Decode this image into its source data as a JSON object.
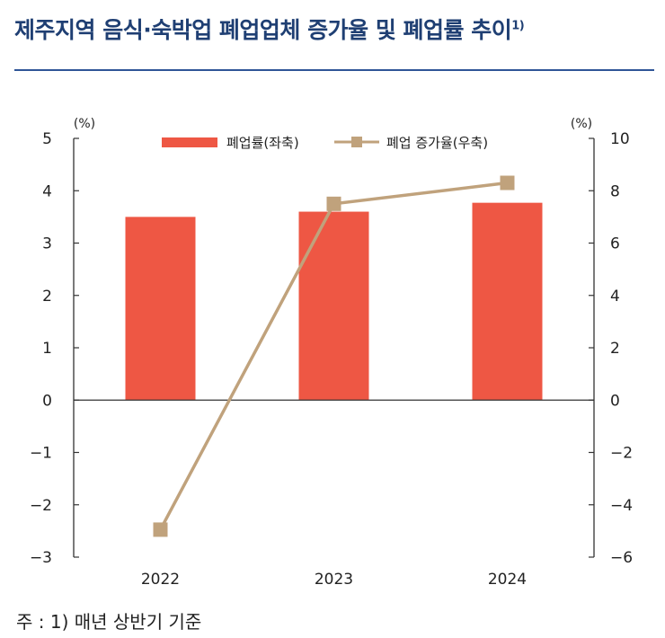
{
  "header": {
    "title": "제주지역 음식·숙박업 폐업업체 증가율 및 폐업률 추이",
    "title_note": "1)"
  },
  "footer": {
    "note": "주 : 1) 매년 상반기 기준"
  },
  "colors": {
    "title": "#1f3f73",
    "rule": "#2f5597",
    "bar": "#ee5744",
    "line": "#c0a27c",
    "axis": "#333333"
  },
  "chart_data": {
    "type": "bar+line",
    "categories": [
      "2022",
      "2023",
      "2024"
    ],
    "series": [
      {
        "name": "폐업률(좌축)",
        "type": "bar",
        "axis": "left",
        "values": [
          3.5,
          3.6,
          3.77
        ]
      },
      {
        "name": "폐업 증가율(우축)",
        "type": "line",
        "axis": "right",
        "marker": "square",
        "values": [
          -4.95,
          7.5,
          8.3
        ]
      }
    ],
    "left_axis": {
      "unit": "(%)",
      "ylim": [
        -3,
        5
      ],
      "ticks": [
        "5",
        "4",
        "3",
        "2",
        "1",
        "0",
        "−1",
        "−2",
        "−3"
      ]
    },
    "right_axis": {
      "unit": "(%)",
      "ylim": [
        -6,
        10
      ],
      "ticks": [
        "10",
        "8",
        "6",
        "4",
        "2",
        "0",
        "−2",
        "−4",
        "−6"
      ]
    },
    "legend": "top-center",
    "grid": false
  }
}
